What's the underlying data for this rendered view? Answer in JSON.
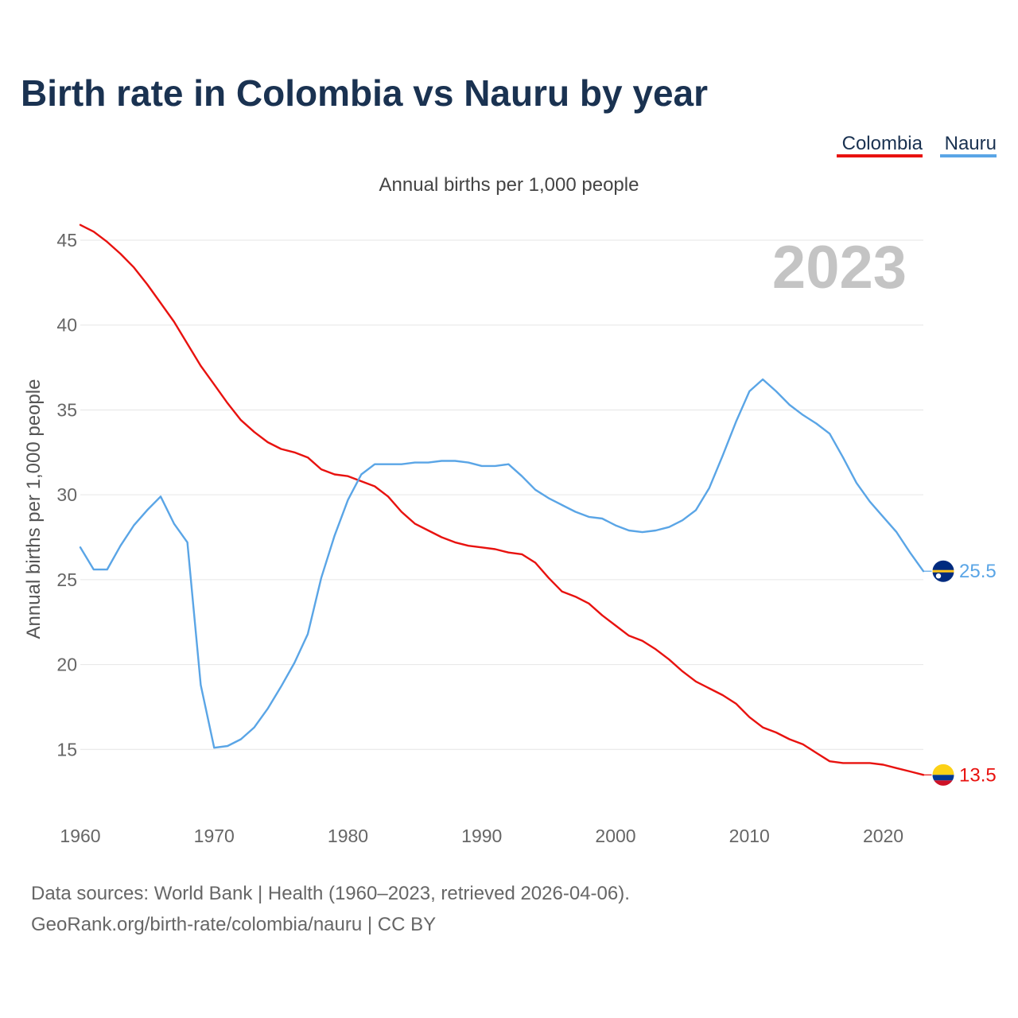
{
  "chart_data": {
    "type": "line",
    "title": "Birth rate in Colombia vs Nauru by year",
    "subtitle": "Annual births per 1,000 people",
    "ylabel": "Annual births per 1,000 people",
    "xlabel": "",
    "year_marker": "2023",
    "xlim": [
      1960,
      2023
    ],
    "ylim": [
      11.5,
      46.5
    ],
    "xticks": [
      1960,
      1970,
      1980,
      1990,
      2000,
      2010,
      2020
    ],
    "yticks": [
      15,
      20,
      25,
      30,
      35,
      40,
      45
    ],
    "grid": true,
    "legend_position": "top-right",
    "series": [
      {
        "name": "Colombia",
        "color": "#e8120f",
        "end_label": "13.5",
        "flag": "colombia-flag",
        "x": [
          1960,
          1961,
          1962,
          1963,
          1964,
          1965,
          1966,
          1967,
          1968,
          1969,
          1970,
          1971,
          1972,
          1973,
          1974,
          1975,
          1976,
          1977,
          1978,
          1979,
          1980,
          1981,
          1982,
          1983,
          1984,
          1985,
          1986,
          1987,
          1988,
          1989,
          1990,
          1991,
          1992,
          1993,
          1994,
          1995,
          1996,
          1997,
          1998,
          1999,
          2000,
          2001,
          2002,
          2003,
          2004,
          2005,
          2006,
          2007,
          2008,
          2009,
          2010,
          2011,
          2012,
          2013,
          2014,
          2015,
          2016,
          2017,
          2018,
          2019,
          2020,
          2021,
          2022,
          2023
        ],
        "values": [
          45.9,
          45.5,
          44.9,
          44.2,
          43.4,
          42.4,
          41.3,
          40.2,
          38.9,
          37.6,
          36.5,
          35.4,
          34.4,
          33.7,
          33.1,
          32.7,
          32.5,
          32.2,
          31.5,
          31.2,
          31.1,
          30.8,
          30.5,
          29.9,
          29.0,
          28.3,
          27.9,
          27.5,
          27.2,
          27.0,
          26.9,
          26.8,
          26.6,
          26.5,
          26.0,
          25.1,
          24.3,
          24.0,
          23.6,
          22.9,
          22.3,
          21.7,
          21.4,
          20.9,
          20.3,
          19.6,
          19.0,
          18.6,
          18.2,
          17.7,
          16.9,
          16.3,
          16.0,
          15.6,
          15.3,
          14.8,
          14.3,
          14.2,
          14.2,
          14.2,
          14.1,
          13.9,
          13.7,
          13.5
        ]
      },
      {
        "name": "Nauru",
        "color": "#5aa5e6",
        "end_label": "25.5",
        "flag": "nauru-flag",
        "x": [
          1960,
          1961,
          1962,
          1963,
          1964,
          1965,
          1966,
          1967,
          1968,
          1969,
          1970,
          1971,
          1972,
          1973,
          1974,
          1975,
          1976,
          1977,
          1978,
          1979,
          1980,
          1981,
          1982,
          1983,
          1984,
          1985,
          1986,
          1987,
          1988,
          1989,
          1990,
          1991,
          1992,
          1993,
          1994,
          1995,
          1996,
          1997,
          1998,
          1999,
          2000,
          2001,
          2002,
          2003,
          2004,
          2005,
          2006,
          2007,
          2008,
          2009,
          2010,
          2011,
          2012,
          2013,
          2014,
          2015,
          2016,
          2017,
          2018,
          2019,
          2020,
          2021,
          2022,
          2023
        ],
        "values": [
          26.9,
          25.6,
          25.6,
          27.0,
          28.2,
          29.1,
          29.9,
          28.3,
          27.2,
          18.8,
          15.1,
          15.2,
          15.6,
          16.3,
          17.4,
          18.7,
          20.1,
          21.8,
          25.1,
          27.6,
          29.7,
          31.2,
          31.8,
          31.8,
          31.8,
          31.9,
          31.9,
          32.0,
          32.0,
          31.9,
          31.7,
          31.7,
          31.8,
          31.1,
          30.3,
          29.8,
          29.4,
          29.0,
          28.7,
          28.6,
          28.2,
          27.9,
          27.8,
          27.9,
          28.1,
          28.5,
          29.1,
          30.4,
          32.3,
          34.3,
          36.1,
          36.8,
          36.1,
          35.3,
          34.7,
          34.2,
          33.6,
          32.2,
          30.7,
          29.6,
          28.7,
          27.8,
          26.6,
          25.5
        ]
      }
    ]
  },
  "source": {
    "line1": "Data sources: World Bank | Health (1960–2023, retrieved 2026-04-06).",
    "line2": "GeoRank.org/birth-rate/colombia/nauru | CC BY"
  }
}
